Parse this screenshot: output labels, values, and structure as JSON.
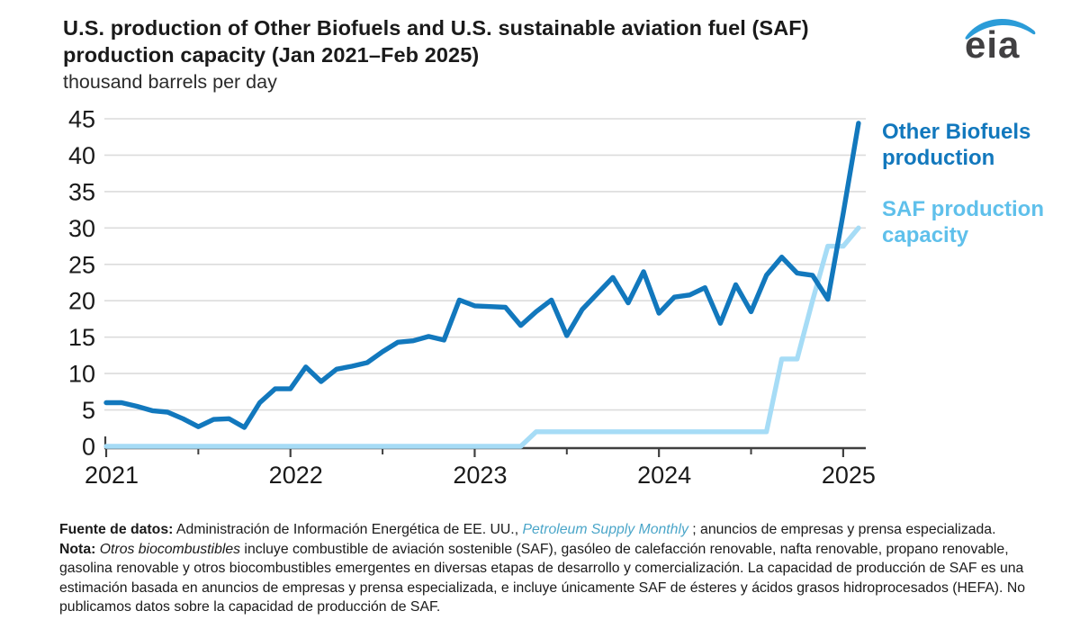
{
  "header": {
    "title_line1": "U.S. production of Other Biofuels and U.S. sustainable aviation fuel (SAF)",
    "title_line2": "production capacity (Jan 2021–Feb 2025)",
    "subtitle": "thousand barrels per day",
    "logo_text": "eia"
  },
  "legend": {
    "other_biofuels_label": "Other Biofuels production",
    "saf_label": "SAF production capacity"
  },
  "colors": {
    "other_biofuels": "#1278bd",
    "saf_line": "#a6dcf6",
    "saf_text": "#5fc0eb",
    "gridline": "#dcdcdc",
    "axis": "#3f3f3f",
    "tick_label": "#1a1a1a",
    "link": "#4ba6c9",
    "logo_swoosh": "#2b9cd8"
  },
  "chart_data": {
    "type": "line",
    "title": "U.S. production of Other Biofuels and U.S. sustainable aviation fuel (SAF) production capacity (Jan 2021–Feb 2025)",
    "ylabel": "thousand barrels per day",
    "xlabel": "",
    "ylim": [
      0,
      45
    ],
    "ytick_step": 5,
    "grid": "horizontal",
    "legend_position": "right",
    "x_tick_labels": [
      "2021",
      "2022",
      "2023",
      "2024",
      "2025"
    ],
    "frequency": "monthly",
    "months": [
      "2021-01",
      "2021-02",
      "2021-03",
      "2021-04",
      "2021-05",
      "2021-06",
      "2021-07",
      "2021-08",
      "2021-09",
      "2021-10",
      "2021-11",
      "2021-12",
      "2022-01",
      "2022-02",
      "2022-03",
      "2022-04",
      "2022-05",
      "2022-06",
      "2022-07",
      "2022-08",
      "2022-09",
      "2022-10",
      "2022-11",
      "2022-12",
      "2023-01",
      "2023-02",
      "2023-03",
      "2023-04",
      "2023-05",
      "2023-06",
      "2023-07",
      "2023-08",
      "2023-09",
      "2023-10",
      "2023-11",
      "2023-12",
      "2024-01",
      "2024-02",
      "2024-03",
      "2024-04",
      "2024-05",
      "2024-06",
      "2024-07",
      "2024-08",
      "2024-09",
      "2024-10",
      "2024-11",
      "2024-12",
      "2025-01",
      "2025-02"
    ],
    "series": [
      {
        "name": "Other Biofuels production",
        "color": "#1278bd",
        "values": [
          6,
          6,
          5.5,
          4.9,
          4.7,
          3.8,
          2.7,
          3.7,
          3.8,
          2.6,
          6,
          7.9,
          7.9,
          10.9,
          8.9,
          10.6,
          11,
          11.5,
          13,
          14.3,
          14.5,
          15.1,
          14.6,
          20.1,
          19.3,
          19.2,
          19.1,
          16.6,
          18.5,
          20.1,
          15.2,
          18.8,
          21,
          23.2,
          19.7,
          24,
          18.3,
          20.5,
          20.8,
          21.8,
          16.9,
          22.2,
          18.5,
          23.5,
          26,
          23.8,
          23.5,
          20.2,
          32,
          44.4
        ]
      },
      {
        "name": "SAF production capacity",
        "color": "#a6dcf6",
        "values": [
          0,
          0,
          0,
          0,
          0,
          0,
          0,
          0,
          0,
          0,
          0,
          0,
          0,
          0,
          0,
          0,
          0,
          0,
          0,
          0,
          0,
          0,
          0,
          0,
          0,
          0,
          0,
          0,
          2,
          2,
          2,
          2,
          2,
          2,
          2,
          2,
          2,
          2,
          2,
          2,
          2,
          2,
          2,
          2,
          12,
          12,
          20,
          27.5,
          27.5,
          30
        ]
      }
    ]
  },
  "footer": {
    "fuente_label": "Fuente de datos:",
    "fuente_text": " Administración de Información Energética de EE. UU., ",
    "fuente_link": "Petroleum Supply Monthly",
    "fuente_tail": " ; anuncios de empresas y prensa especializada.",
    "nota_label": "Nota:",
    "nota_italic": " Otros biocombustibles",
    "nota_text": " incluye combustible de aviación sostenible (SAF), gasóleo de calefacción renovable, nafta renovable, propano renovable, gasolina renovable y otros biocombustibles emergentes en diversas etapas de desarrollo y comercialización. La capacidad de producción de SAF es una estimación basada en anuncios de empresas y prensa especializada, e incluye únicamente SAF de ésteres y ácidos grasos hidroprocesados (HEFA). No publicamos datos sobre la capacidad de producción de SAF."
  }
}
